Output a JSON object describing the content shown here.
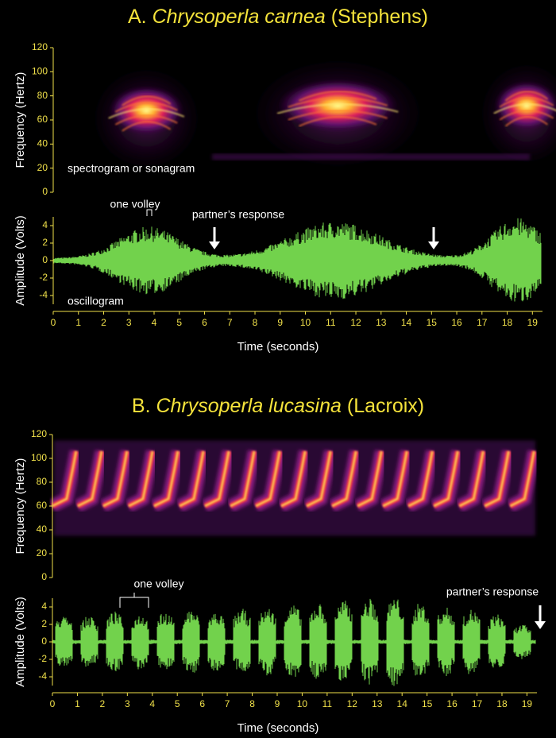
{
  "chart_data": [
    {
      "type": "spectrogram",
      "title_parts": [
        "A.",
        "Chrysoperla carnea",
        "(Stephens)"
      ],
      "ylabel": "Frequency (Hertz)",
      "ylim": [
        0,
        120
      ],
      "yticks": [
        0,
        20,
        40,
        60,
        80,
        100,
        120
      ],
      "annotation": "spectrogram or sonagram"
    },
    {
      "type": "oscillogram",
      "ylabel": "Amplitude (Volts)",
      "ylim": [
        -5,
        5
      ],
      "yticks": [
        -4,
        -2,
        0,
        2,
        4
      ],
      "xlim": [
        0,
        19.4
      ],
      "xticks": [
        0,
        1,
        2,
        3,
        4,
        5,
        6,
        7,
        8,
        9,
        10,
        11,
        12,
        13,
        14,
        15,
        16,
        17,
        18,
        19
      ],
      "xlabel": "Time (seconds)",
      "annotations": [
        "one volley",
        "partner’s response",
        "oscillogram"
      ],
      "color": "#72d24c"
    },
    {
      "type": "spectrogram",
      "title_parts": [
        "B.",
        "Chrysoperla lucasina",
        "(Lacroix)"
      ],
      "ylabel": "Frequency (Hertz)",
      "ylim": [
        0,
        120
      ],
      "yticks": [
        0,
        20,
        40,
        60,
        80,
        100,
        120
      ]
    },
    {
      "type": "oscillogram",
      "ylabel": "Amplitude (Volts)",
      "ylim": [
        -5,
        5
      ],
      "yticks": [
        -4,
        -2,
        0,
        2,
        4
      ],
      "xlim": [
        0,
        19.4
      ],
      "xticks": [
        0,
        1,
        2,
        3,
        4,
        5,
        6,
        7,
        8,
        9,
        10,
        11,
        12,
        13,
        14,
        15,
        16,
        17,
        18,
        19
      ],
      "xlabel": "Time (seconds)",
      "annotations": [
        "one volley",
        "partner’s response"
      ],
      "color": "#72d24c"
    }
  ]
}
